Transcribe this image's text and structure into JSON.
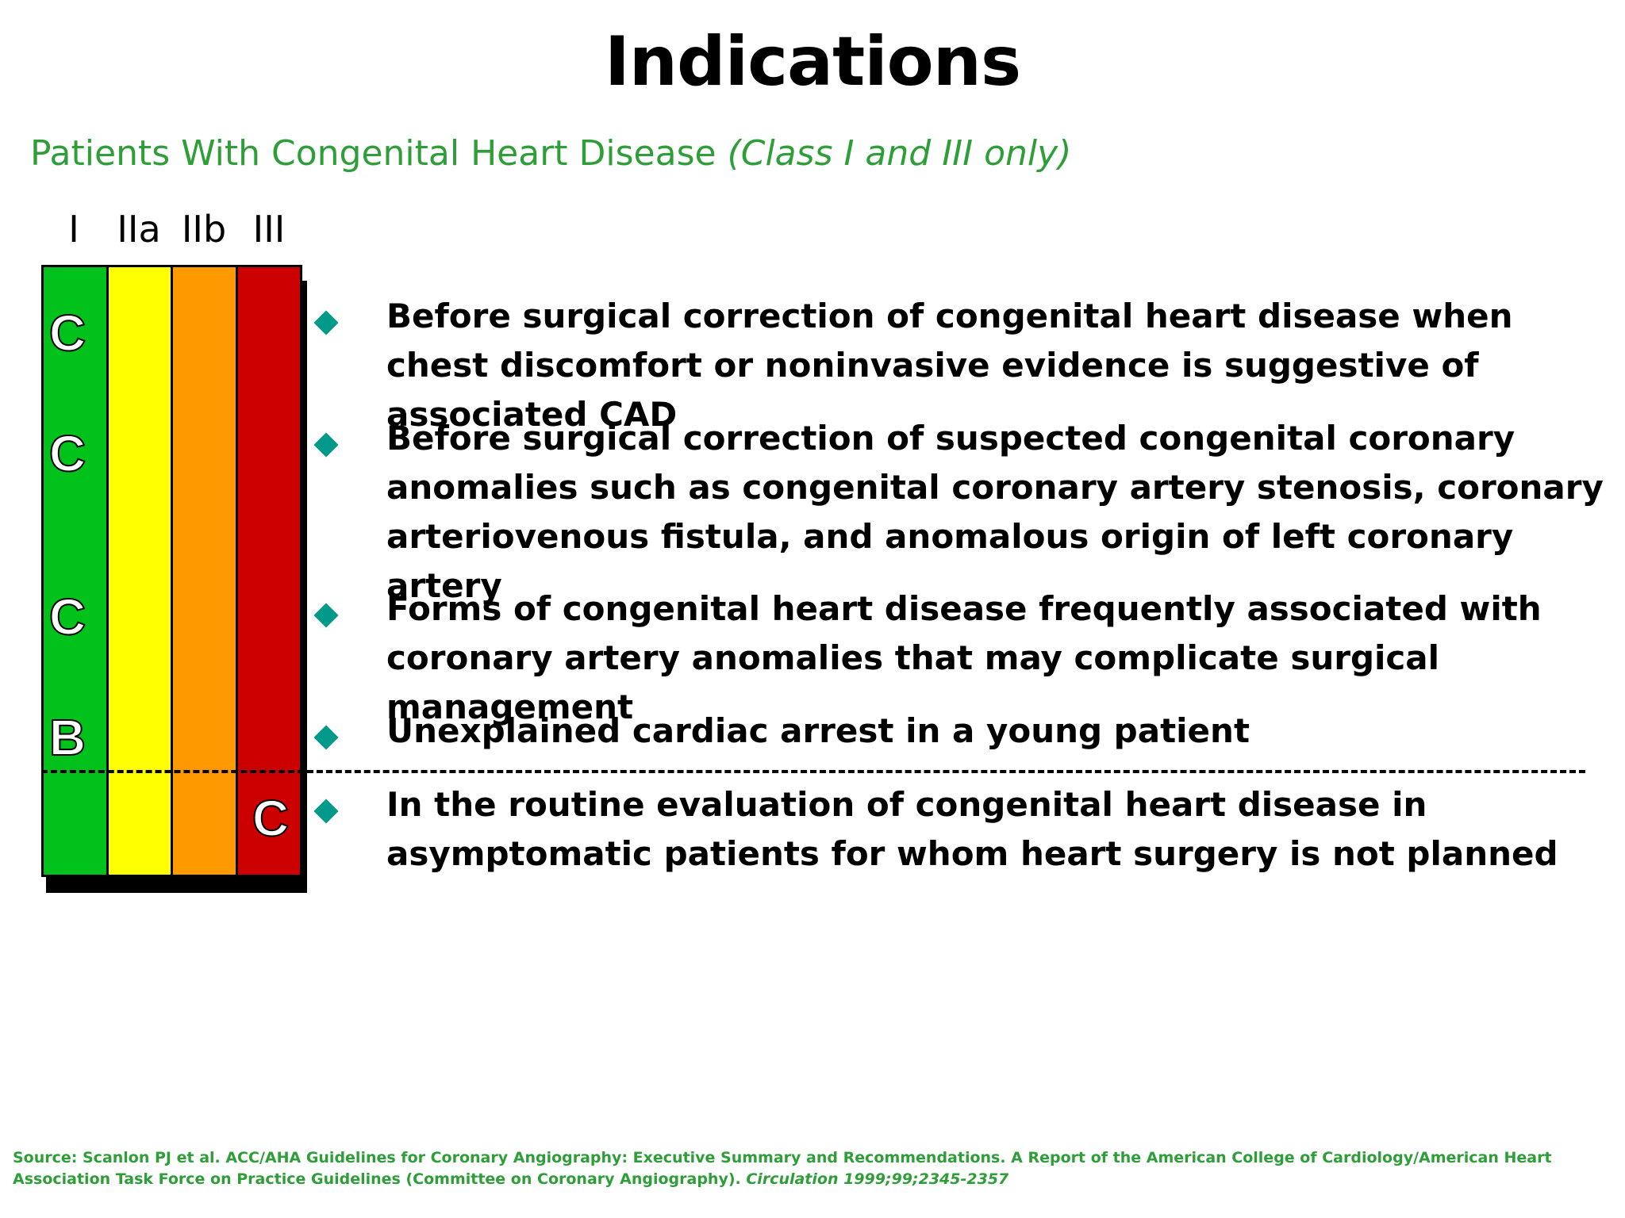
{
  "slide": {
    "title": "Indications",
    "subtitle_main": "Patients With Congenital Heart Disease ",
    "subtitle_italic": "(Class I and III only)"
  },
  "chart": {
    "column_headers": [
      "I",
      "IIa",
      "IIb",
      "III"
    ],
    "column_colors": [
      "#00c21a",
      "#ffff00",
      "#ff9900",
      "#cc0000"
    ],
    "level_markers": [
      {
        "text": "C",
        "column": "I"
      },
      {
        "text": "C",
        "column": "I"
      },
      {
        "text": "C",
        "column": "I"
      },
      {
        "text": "B",
        "column": "I"
      },
      {
        "text": "C",
        "column": "III"
      }
    ]
  },
  "recommendations": [
    {
      "text": "Before surgical correction of congenital heart disease when chest discomfort or noninvasive evidence is suggestive of associated CAD"
    },
    {
      "text": "Before surgical correction of suspected congenital coronary anomalies such as congenital coronary artery stenosis, coronary arteriovenous fistula, and anomalous origin of left coronary artery"
    },
    {
      "text": "Forms of congenital heart disease frequently associated with coronary artery anomalies that may complicate surgical management"
    },
    {
      "text": "Unexplained cardiac arrest in a young patient"
    },
    {
      "text": "In the routine evaluation of congenital heart disease in asymptomatic patients for whom heart surgery is not planned"
    }
  ],
  "source": {
    "main": "Source:  Scanlon PJ et al. ACC/AHA Guidelines for Coronary Angiography: Executive Summary and Recommendations. A Report of the American College of Cardiology/American Heart Association Task Force on Practice Guidelines (Committee on Coronary Angiography). ",
    "journal": "Circulation 1999;99;2345-2357"
  }
}
